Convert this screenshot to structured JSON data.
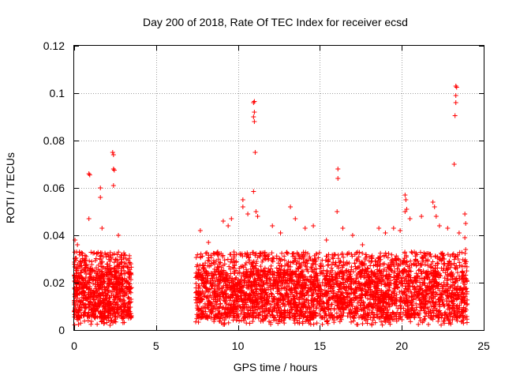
{
  "chart_data": {
    "type": "scatter",
    "title": "Day 200 of 2018, Rate Of TEC Index for receiver ecsd",
    "xlabel": "GPS time / hours",
    "ylabel": "ROTI / TECUs",
    "xlim": [
      0,
      25
    ],
    "ylim": [
      0,
      0.12
    ],
    "xticks": [
      0,
      5,
      10,
      15,
      20,
      25
    ],
    "xtick_labels": [
      "0",
      "5",
      "10",
      "15",
      "20",
      "25"
    ],
    "yticks": [
      0,
      0.02,
      0.04,
      0.06,
      0.08,
      0.1,
      0.12
    ],
    "ytick_labels": [
      "0",
      "0.02",
      "0.04",
      "0.06",
      "0.08",
      "0.1",
      "0.12"
    ],
    "grid": true,
    "marker": "plus",
    "color": "#ff0000",
    "series": [
      {
        "name": "ROTI",
        "segments": [
          {
            "x_range": [
              0.0,
              3.5
            ],
            "typical_range": [
              0.005,
              0.025
            ],
            "samples": 950
          },
          {
            "x_range": [
              7.4,
              24.0
            ],
            "typical_range": [
              0.005,
              0.025
            ],
            "samples": 3600
          }
        ],
        "outliers": [
          {
            "x": 0.05,
            "y": 0.038
          },
          {
            "x": 0.2,
            "y": 0.036
          },
          {
            "x": 0.15,
            "y": 0.033
          },
          {
            "x": 0.9,
            "y": 0.066
          },
          {
            "x": 0.95,
            "y": 0.0655
          },
          {
            "x": 1.6,
            "y": 0.06
          },
          {
            "x": 1.6,
            "y": 0.056
          },
          {
            "x": 2.35,
            "y": 0.075
          },
          {
            "x": 2.4,
            "y": 0.074
          },
          {
            "x": 2.45,
            "y": 0.0675
          },
          {
            "x": 2.4,
            "y": 0.068
          },
          {
            "x": 2.4,
            "y": 0.061
          },
          {
            "x": 0.9,
            "y": 0.047
          },
          {
            "x": 1.7,
            "y": 0.043
          },
          {
            "x": 2.7,
            "y": 0.04
          },
          {
            "x": 7.7,
            "y": 0.042
          },
          {
            "x": 8.2,
            "y": 0.037
          },
          {
            "x": 9.1,
            "y": 0.046
          },
          {
            "x": 9.4,
            "y": 0.044
          },
          {
            "x": 9.6,
            "y": 0.047
          },
          {
            "x": 10.3,
            "y": 0.052
          },
          {
            "x": 10.6,
            "y": 0.049
          },
          {
            "x": 10.3,
            "y": 0.055
          },
          {
            "x": 10.95,
            "y": 0.096
          },
          {
            "x": 11.0,
            "y": 0.0965
          },
          {
            "x": 11.0,
            "y": 0.092
          },
          {
            "x": 10.95,
            "y": 0.09
          },
          {
            "x": 11.0,
            "y": 0.088
          },
          {
            "x": 11.05,
            "y": 0.075
          },
          {
            "x": 10.95,
            "y": 0.0585
          },
          {
            "x": 11.1,
            "y": 0.05
          },
          {
            "x": 11.2,
            "y": 0.048
          },
          {
            "x": 12.1,
            "y": 0.044
          },
          {
            "x": 12.6,
            "y": 0.041
          },
          {
            "x": 13.2,
            "y": 0.052
          },
          {
            "x": 13.5,
            "y": 0.047
          },
          {
            "x": 14.1,
            "y": 0.043
          },
          {
            "x": 14.6,
            "y": 0.044
          },
          {
            "x": 15.4,
            "y": 0.038
          },
          {
            "x": 16.1,
            "y": 0.068
          },
          {
            "x": 16.1,
            "y": 0.064
          },
          {
            "x": 16.05,
            "y": 0.05
          },
          {
            "x": 16.4,
            "y": 0.043
          },
          {
            "x": 17.0,
            "y": 0.04
          },
          {
            "x": 17.6,
            "y": 0.036
          },
          {
            "x": 18.6,
            "y": 0.043
          },
          {
            "x": 19.0,
            "y": 0.041
          },
          {
            "x": 19.5,
            "y": 0.043
          },
          {
            "x": 19.9,
            "y": 0.042
          },
          {
            "x": 20.2,
            "y": 0.057
          },
          {
            "x": 20.25,
            "y": 0.055
          },
          {
            "x": 20.3,
            "y": 0.051
          },
          {
            "x": 20.2,
            "y": 0.05
          },
          {
            "x": 20.5,
            "y": 0.047
          },
          {
            "x": 21.2,
            "y": 0.048
          },
          {
            "x": 21.9,
            "y": 0.054
          },
          {
            "x": 22.0,
            "y": 0.052
          },
          {
            "x": 22.1,
            "y": 0.048
          },
          {
            "x": 22.3,
            "y": 0.044
          },
          {
            "x": 22.8,
            "y": 0.043
          },
          {
            "x": 23.3,
            "y": 0.103
          },
          {
            "x": 23.35,
            "y": 0.1025
          },
          {
            "x": 23.3,
            "y": 0.099
          },
          {
            "x": 23.3,
            "y": 0.096
          },
          {
            "x": 23.25,
            "y": 0.0905
          },
          {
            "x": 23.2,
            "y": 0.07
          },
          {
            "x": 23.5,
            "y": 0.041
          },
          {
            "x": 23.85,
            "y": 0.049
          },
          {
            "x": 23.9,
            "y": 0.045
          },
          {
            "x": 23.85,
            "y": 0.039
          },
          {
            "x": 23.9,
            "y": 0.034
          }
        ]
      }
    ]
  }
}
